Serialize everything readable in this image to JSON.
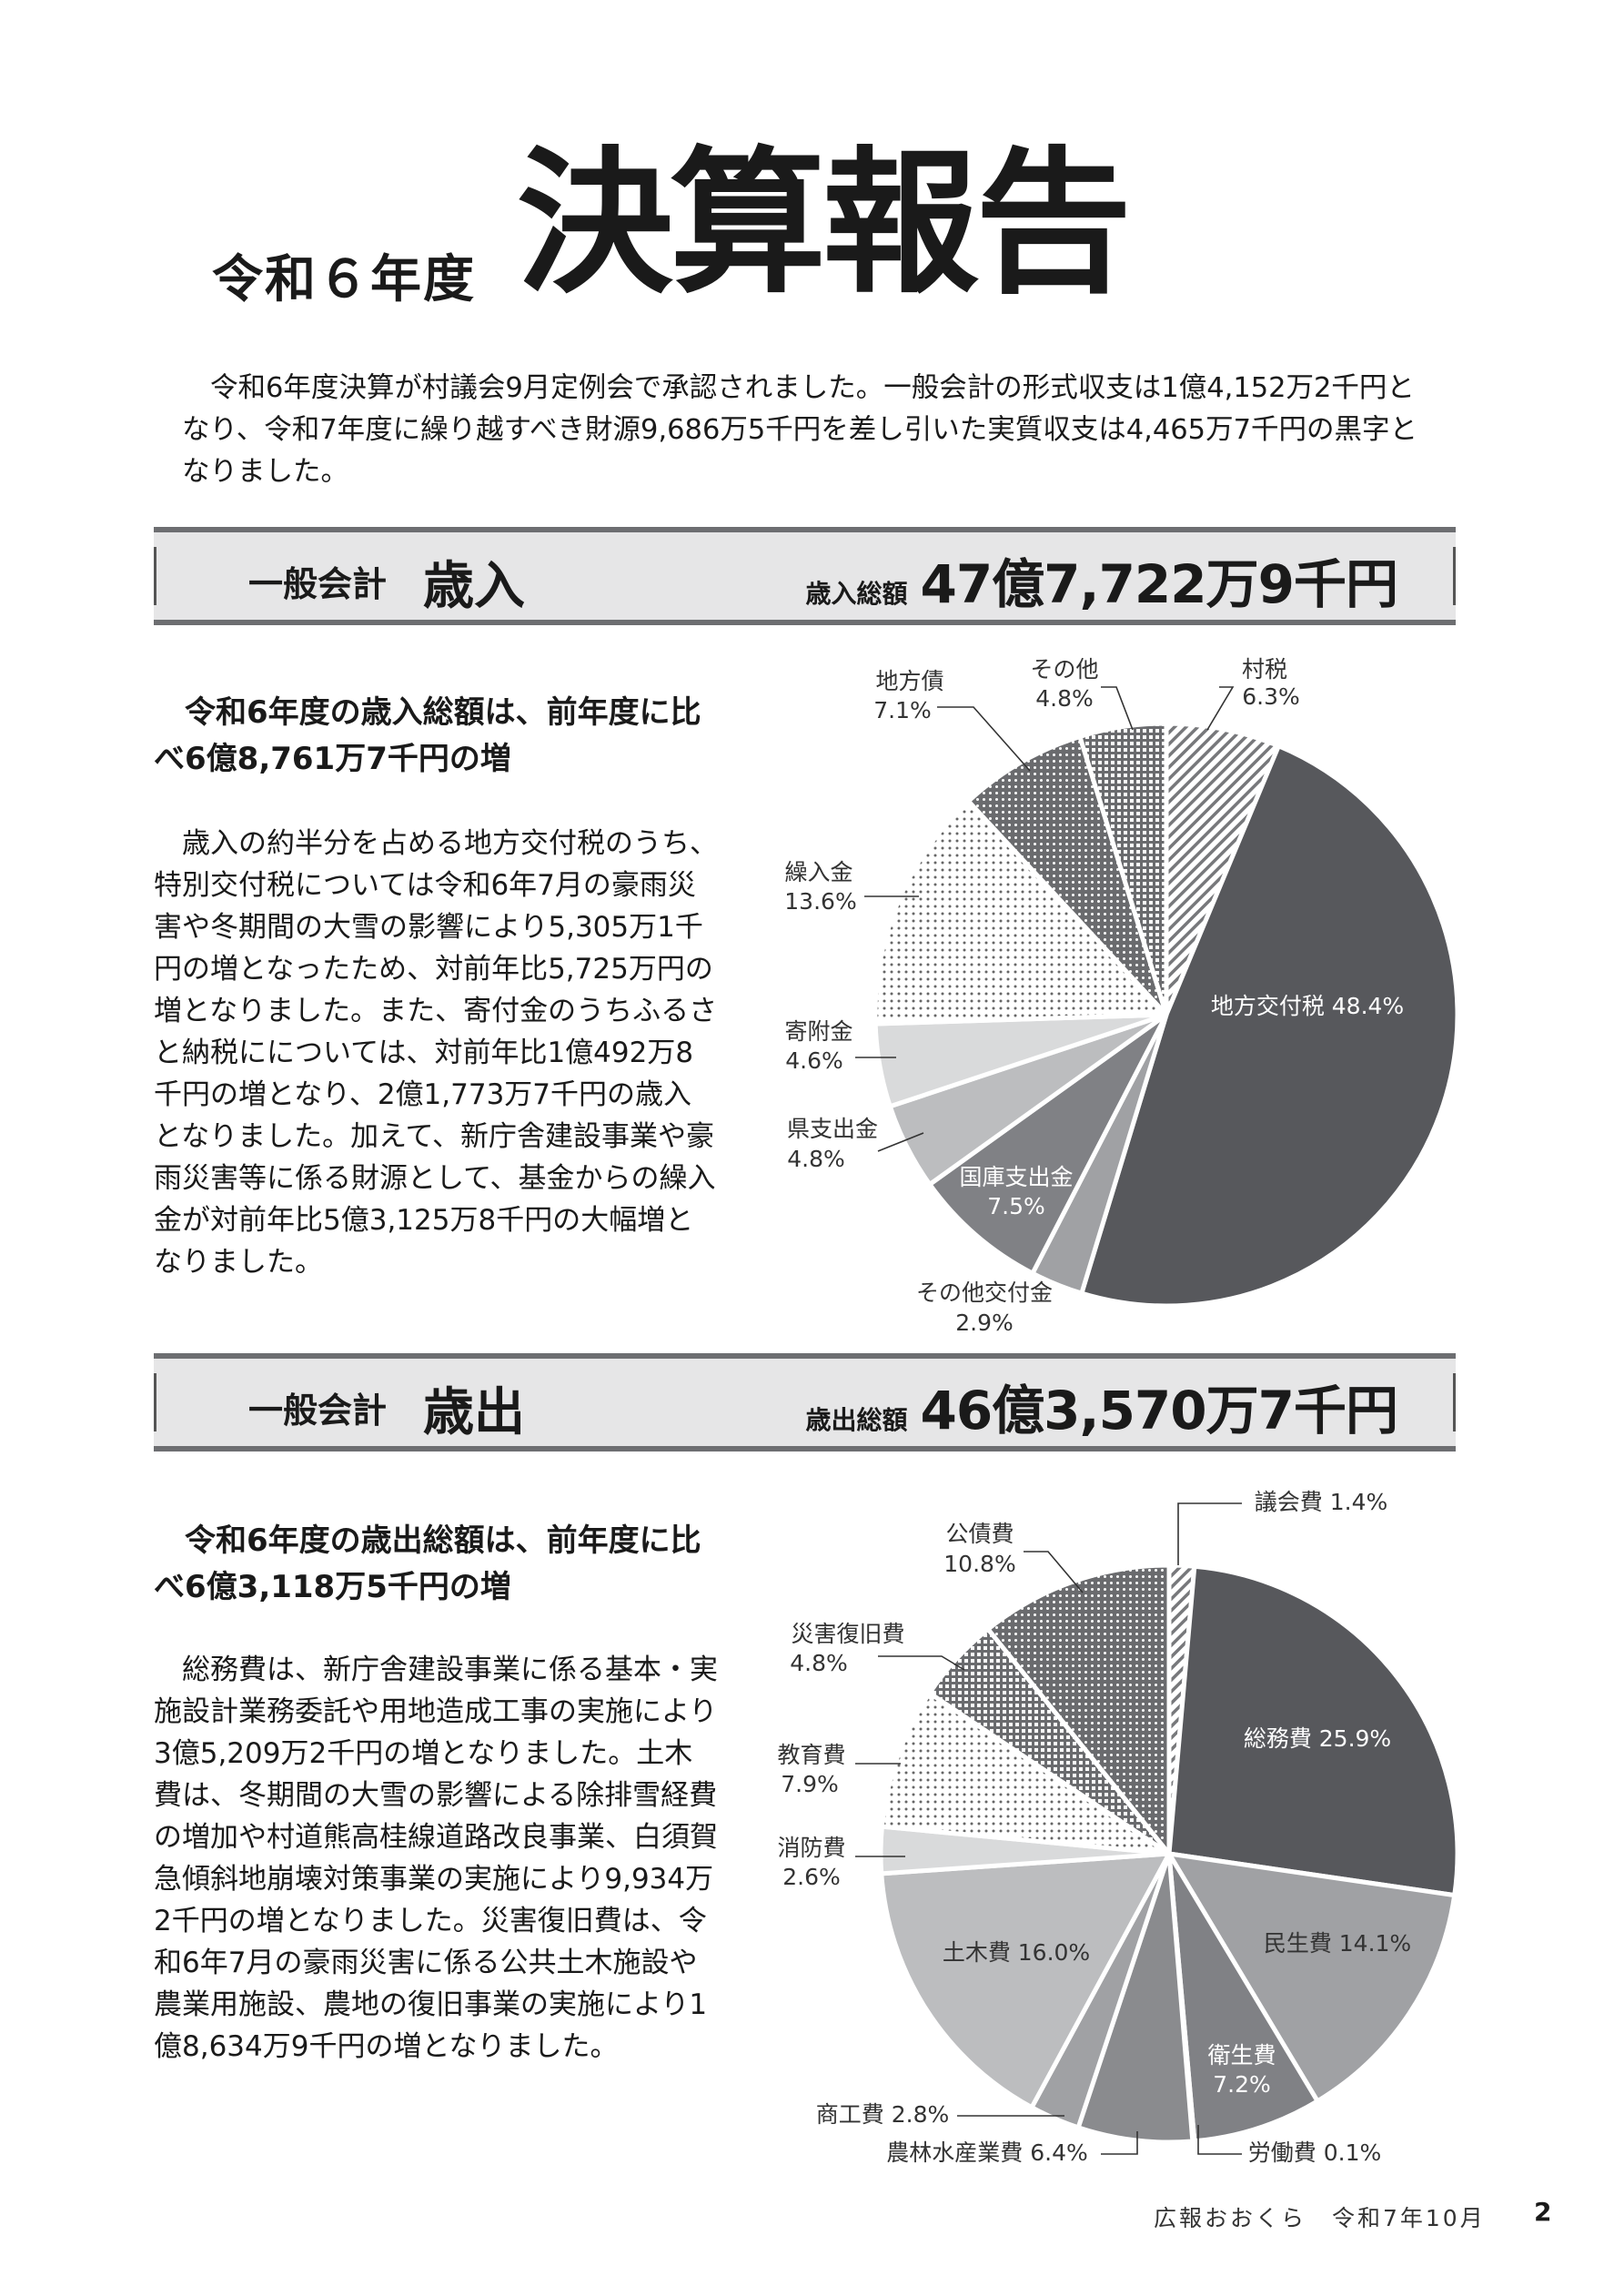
{
  "header": {
    "year": "令和６年度",
    "title": "決算報告"
  },
  "intro": "令和6年度決算が村議会9月定例会で承認されました。一般会計の形式収支は1億4,152万2千円となり、令和7年度に繰り越すべき財源9,686万5千円を差し引いた実質収支は4,465万7千円の黒字となりました。",
  "revenue": {
    "band_lead": "一般会計",
    "band_title": "歳入",
    "total_label": "歳入総額",
    "total_amount": "47億7,722万9千円",
    "heading": "令和6年度の歳入総額は、前年度に比べ6億8,761万7千円の増",
    "body": "歳入の約半分を占める地方交付税のうち、特別交付税については令和6年7月の豪雨災害や冬期間の大雪の影響により5,305万1千円の増となったため、対前年比5,725万円の増となりました。また、寄付金のうちふるさと納税にについては、対前年比1億492万8千円の増となり、2億1,773万7千円の歳入となりました。加えて、新庁舎建設事業や豪雨災害等に係る財源として、基金からの繰入金が対前年比5億3,125万8千円の大幅増となりました。"
  },
  "expenditure": {
    "band_lead": "一般会計",
    "band_title": "歳出",
    "total_label": "歳出総額",
    "total_amount": "46億3,570万7千円",
    "heading": "令和6年度の歳出総額は、前年度に比べ6億3,118万5千円の増",
    "body": "総務費は、新庁舎建設事業に係る基本・実施設計業務委託や用地造成工事の実施により3億5,209万2千円の増となりました。土木費は、冬期間の大雪の影響による除排雪経費の増加や村道熊高桂線道路改良事業、白須賀急傾斜地崩壊対策事業の実施により9,934万2千円の増となりました。災害復旧費は、令和6年7月の豪雨災害に係る公共土木施設や農業用施設、農地の復旧事業の実施により1億8,634万9千円の増となりました。"
  },
  "chart_data": [
    {
      "type": "pie",
      "start": "12 o'clock",
      "direction": "clockwise",
      "categories": [
        "村税",
        "地方交付税",
        "その他交付金",
        "国庫支出金",
        "県支出金",
        "寄附金",
        "繰入金",
        "地方債",
        "その他"
      ],
      "values": [
        6.3,
        48.4,
        2.9,
        7.5,
        4.8,
        4.6,
        13.6,
        7.1,
        4.8
      ],
      "labels": [
        "6.3%",
        "48.4%",
        "2.9%",
        "7.5%",
        "4.8%",
        "4.6%",
        "13.6%",
        "7.1%",
        "4.8%"
      ],
      "fills": [
        "hatch",
        "#57585c",
        "#a0a1a4",
        "#808185",
        "#bcbdbf",
        "#d9dadb",
        "dots-light",
        "dots-dark",
        "grid"
      ]
    },
    {
      "type": "pie",
      "start": "12 o'clock",
      "direction": "clockwise",
      "categories": [
        "議会費",
        "総務費",
        "民生費",
        "衛生費",
        "労働費",
        "農林水産業費",
        "商工費",
        "土木費",
        "消防費",
        "教育費",
        "災害復旧費",
        "公債費"
      ],
      "values": [
        1.4,
        25.9,
        14.1,
        7.2,
        0.1,
        6.4,
        2.8,
        16.0,
        2.6,
        7.9,
        4.8,
        10.8
      ],
      "labels": [
        "1.4%",
        "25.9%",
        "14.1%",
        "7.2%",
        "0.1%",
        "6.4%",
        "2.8%",
        "16.0%",
        "2.6%",
        "7.9%",
        "4.8%",
        "10.8%"
      ],
      "fills": [
        "hatch",
        "#57585c",
        "#a0a1a4",
        "#808185",
        "#cfd0d1",
        "#8a8b8e",
        "#a0a1a4",
        "#bcbdbf",
        "#d9dadb",
        "dots-light",
        "grid",
        "dots-dark"
      ]
    }
  ],
  "footer": {
    "publication": "広報おおくら　令和7年10月",
    "page": "2"
  }
}
